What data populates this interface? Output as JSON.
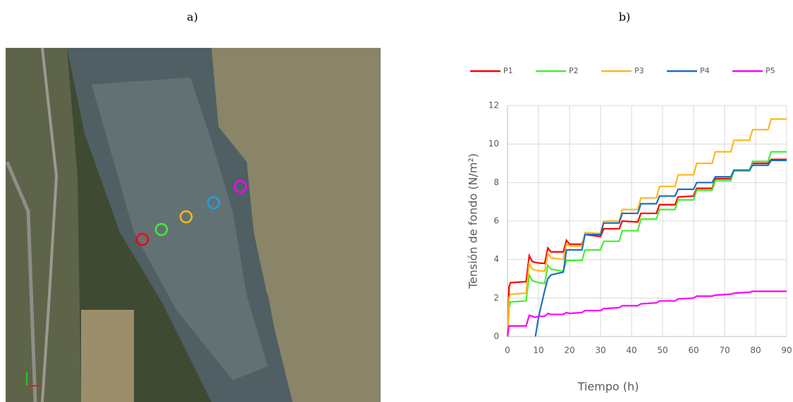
{
  "panels": {
    "a": "a)",
    "b": "b)"
  },
  "chart_data": {
    "type": "line",
    "xlabel": "Tiempo (h)",
    "ylabel": "Tensión de fondo (N/m²)",
    "x": [
      0,
      0.5,
      1,
      6,
      7,
      8,
      9,
      10,
      12,
      13,
      14,
      18,
      19,
      20,
      24,
      25,
      30,
      31,
      36,
      37,
      42,
      43,
      48,
      49,
      54,
      55,
      60,
      61,
      66,
      67,
      72,
      73,
      78,
      79,
      84,
      85,
      90
    ],
    "series": [
      {
        "name": "P1",
        "color": "#ff0000",
        "values": [
          0,
          2.6,
          2.8,
          2.85,
          4.2,
          3.9,
          3.85,
          3.82,
          3.8,
          4.6,
          4.4,
          4.4,
          5.0,
          4.8,
          4.8,
          5.3,
          5.2,
          5.6,
          5.6,
          6.0,
          5.95,
          6.4,
          6.4,
          6.85,
          6.85,
          7.25,
          7.3,
          7.7,
          7.7,
          8.2,
          8.2,
          8.6,
          8.6,
          9.0,
          9.0,
          9.2,
          9.2
        ]
      },
      {
        "name": "P2",
        "color": "#44ee33",
        "values": [
          0,
          1.5,
          1.8,
          1.85,
          3.2,
          2.9,
          2.85,
          2.8,
          2.75,
          3.7,
          3.5,
          3.4,
          3.95,
          3.95,
          3.95,
          4.5,
          4.5,
          4.95,
          4.95,
          5.5,
          5.5,
          6.1,
          6.1,
          6.6,
          6.6,
          7.1,
          7.1,
          7.6,
          7.6,
          8.1,
          8.1,
          8.6,
          8.6,
          9.1,
          9.1,
          9.6,
          9.6
        ]
      },
      {
        "name": "P3",
        "color": "#ffb81c",
        "values": [
          0,
          2.0,
          2.2,
          2.25,
          3.8,
          3.5,
          3.45,
          3.42,
          3.4,
          4.3,
          4.1,
          4.0,
          4.8,
          4.7,
          4.7,
          5.4,
          5.35,
          6.0,
          6.0,
          6.6,
          6.6,
          7.2,
          7.2,
          7.8,
          7.8,
          8.4,
          8.4,
          9.0,
          9.0,
          9.6,
          9.6,
          10.2,
          10.2,
          10.75,
          10.75,
          11.3,
          11.3
        ]
      },
      {
        "name": "P4",
        "color": "#1f6fbf",
        "values": [
          null,
          null,
          null,
          null,
          null,
          null,
          0,
          1.0,
          2.4,
          3.0,
          3.2,
          3.35,
          4.5,
          4.5,
          4.5,
          5.3,
          5.3,
          5.9,
          5.9,
          6.4,
          6.4,
          6.9,
          6.9,
          7.3,
          7.3,
          7.65,
          7.65,
          8.0,
          8.0,
          8.3,
          8.3,
          8.65,
          8.65,
          8.9,
          8.9,
          9.15,
          9.15
        ]
      },
      {
        "name": "P5",
        "color": "#ff00ff",
        "values": [
          0,
          0.55,
          0.55,
          0.55,
          1.1,
          1.05,
          1.0,
          1.05,
          1.05,
          1.2,
          1.15,
          1.15,
          1.25,
          1.2,
          1.25,
          1.35,
          1.35,
          1.45,
          1.5,
          1.6,
          1.6,
          1.7,
          1.75,
          1.85,
          1.85,
          1.95,
          2.0,
          2.1,
          2.1,
          2.15,
          2.2,
          2.25,
          2.3,
          2.35,
          2.35,
          2.35,
          2.35
        ]
      }
    ],
    "xlim": [
      0,
      90
    ],
    "xticks": [
      0,
      10,
      20,
      30,
      40,
      50,
      60,
      70,
      80,
      90
    ],
    "ylim": [
      0,
      12
    ],
    "yticks": [
      0,
      2,
      4,
      6,
      8,
      10,
      12
    ],
    "grid": true,
    "legend": "top"
  }
}
